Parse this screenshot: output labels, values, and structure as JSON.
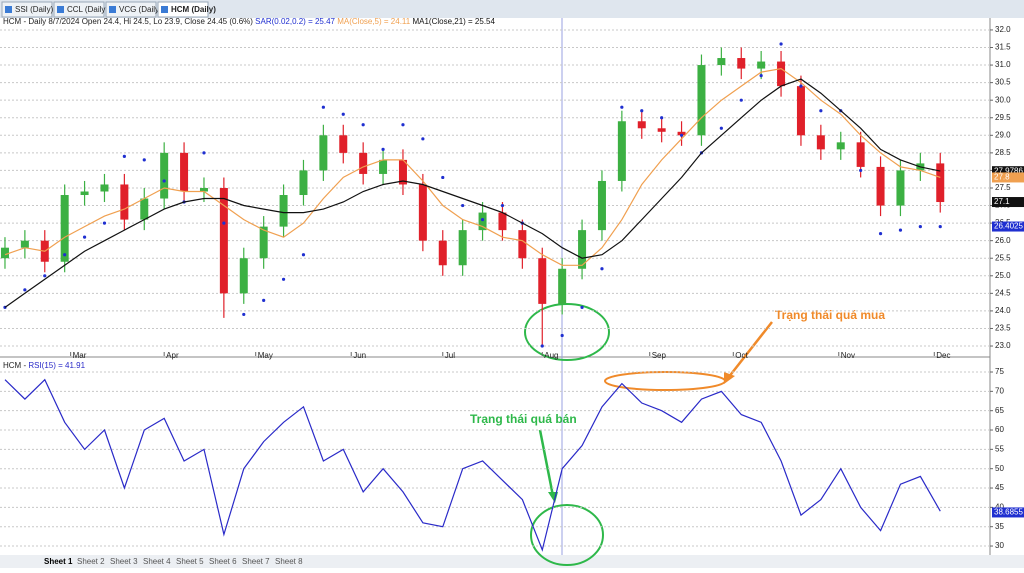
{
  "tabs": [
    "SSI (Daily)",
    "CCL (Daily)",
    "VCG (Daily)",
    "HCM (Daily)"
  ],
  "sheets": [
    "Sheet 1",
    "Sheet 2",
    "Sheet 3",
    "Sheet 4",
    "Sheet 5",
    "Sheet 6",
    "Sheet 7",
    "Sheet 8"
  ],
  "annotations": [
    "Trạng thái quá mua",
    "Trạng thái quá bán"
  ],
  "chart_data": [
    {
      "type": "candlestick",
      "title": "HCM - Daily 8/7/2024 Open 24.4, Hi 24.5, Lo 23.9, Close 24.45 (0.6%)",
      "xlim": [
        -0.25,
        49.5
      ],
      "xticks": [
        {
          "value": 3.3,
          "label": "Mar"
        },
        {
          "value": 8.0,
          "label": "Apr"
        },
        {
          "value": 12.6,
          "label": "May"
        },
        {
          "value": 17.4,
          "label": "Jun"
        },
        {
          "value": 22.0,
          "label": "Jul"
        },
        {
          "value": 27.0,
          "label": "Aug"
        },
        {
          "value": 32.4,
          "label": "Sep"
        },
        {
          "value": 36.6,
          "label": "Oct"
        },
        {
          "value": 41.9,
          "label": "Nov"
        },
        {
          "value": 46.7,
          "label": "Dec"
        }
      ],
      "ylim": [
        22.83,
        32.34
      ],
      "yticks": [
        {
          "value": 23,
          "label": "23.0"
        },
        {
          "value": 23.5,
          "label": "23.5"
        },
        {
          "value": 24,
          "label": "24.0"
        },
        {
          "value": 24.5,
          "label": "24.5"
        },
        {
          "value": 25,
          "label": "25.0"
        },
        {
          "value": 25.5,
          "label": "25.5"
        },
        {
          "value": 26,
          "label": "26.0"
        },
        {
          "value": 26.5,
          "label": "26.5"
        },
        {
          "value": 27,
          "label": "27.0"
        },
        {
          "value": 27.5,
          "label": "27.5"
        },
        {
          "value": 28,
          "label": "28.0"
        },
        {
          "value": 28.5,
          "label": "28.5"
        },
        {
          "value": 29,
          "label": "29.0"
        },
        {
          "value": 29.5,
          "label": "29.5"
        },
        {
          "value": 30,
          "label": "30.0"
        },
        {
          "value": 30.5,
          "label": "30.5"
        },
        {
          "value": 31,
          "label": "31.0"
        },
        {
          "value": 31.5,
          "label": "31.5"
        },
        {
          "value": 32,
          "label": "32.0"
        }
      ],
      "grid": true,
      "up_color": "#3cb043",
      "down_color": "#e0202a",
      "open": [
        25.5,
        25.8,
        26.0,
        25.4,
        27.3,
        27.4,
        27.6,
        26.6,
        27.2,
        28.5,
        27.4,
        27.5,
        24.5,
        25.5,
        26.4,
        27.3,
        28.0,
        29.0,
        28.5,
        27.9,
        28.3,
        27.6,
        26.0,
        25.3,
        26.3,
        26.8,
        26.3,
        25.5,
        24.2,
        25.2,
        26.3,
        27.7,
        29.4,
        29.2,
        29.1,
        29.0,
        31.0,
        31.2,
        30.9,
        31.1,
        30.4,
        29.0,
        28.6,
        28.8,
        28.1,
        27.0,
        28.0,
        28.2
      ],
      "high": [
        26.1,
        26.3,
        26.3,
        27.6,
        27.7,
        27.9,
        27.9,
        27.5,
        28.8,
        28.8,
        27.8,
        27.8,
        25.8,
        26.7,
        27.6,
        28.3,
        29.3,
        29.3,
        28.8,
        28.6,
        28.6,
        27.9,
        26.3,
        26.6,
        27.1,
        27.1,
        26.6,
        25.8,
        25.5,
        26.6,
        28.0,
        29.7,
        29.7,
        29.5,
        29.4,
        31.3,
        31.5,
        31.5,
        31.4,
        31.4,
        30.7,
        29.3,
        29.1,
        29.1,
        28.4,
        28.3,
        28.5,
        28.5
      ],
      "low": [
        25.2,
        25.5,
        25.1,
        25.1,
        27.0,
        27.1,
        26.3,
        26.3,
        26.9,
        27.1,
        27.1,
        23.8,
        24.2,
        25.2,
        26.1,
        27.0,
        27.7,
        28.2,
        27.6,
        27.6,
        27.3,
        25.7,
        25.0,
        25.0,
        26.0,
        26.0,
        25.2,
        23.0,
        23.9,
        24.9,
        26.0,
        27.4,
        28.9,
        28.8,
        28.7,
        28.7,
        30.7,
        30.6,
        30.6,
        30.1,
        28.7,
        28.3,
        28.3,
        27.8,
        26.7,
        26.7,
        27.7,
        26.8
      ],
      "close": [
        25.8,
        26.0,
        25.4,
        27.3,
        27.4,
        27.6,
        26.6,
        27.2,
        28.5,
        27.4,
        27.5,
        24.5,
        25.5,
        26.4,
        27.3,
        28.0,
        29.0,
        28.5,
        27.9,
        28.3,
        27.6,
        26.0,
        25.3,
        26.3,
        26.8,
        26.3,
        25.5,
        24.2,
        25.2,
        26.3,
        27.7,
        29.4,
        29.2,
        29.1,
        29.0,
        31.0,
        31.2,
        30.9,
        31.1,
        30.4,
        29.0,
        28.6,
        28.8,
        28.1,
        27.0,
        28.0,
        28.2,
        27.1
      ],
      "series": [
        {
          "name": "SAR(0.02,0.2) = 25.47",
          "color": "#1f2fd0",
          "style": "dots",
          "values": [
            24.1,
            24.6,
            25.0,
            25.6,
            26.1,
            26.5,
            28.4,
            28.3,
            27.7,
            27.1,
            28.5,
            26.5,
            23.9,
            24.3,
            24.9,
            25.6,
            29.8,
            29.6,
            29.3,
            28.6,
            29.3,
            28.9,
            27.8,
            27.0,
            26.6,
            27.0,
            26.5,
            23.0,
            23.3,
            24.1,
            25.2,
            29.8,
            29.7,
            29.5,
            29.0,
            28.5,
            29.2,
            30.0,
            30.7,
            31.6,
            30.4,
            29.7,
            29.7,
            28.0,
            26.2,
            26.3,
            26.4,
            26.4
          ]
        },
        {
          "name": "MA(Close,5) = 24.11",
          "color": "#f0a050",
          "style": "line",
          "values": [
            25.6,
            25.8,
            25.7,
            26.1,
            26.4,
            26.7,
            26.9,
            27.2,
            27.5,
            27.4,
            27.4,
            27.0,
            26.6,
            26.3,
            26.1,
            26.5,
            27.2,
            27.8,
            28.1,
            28.3,
            28.3,
            27.7,
            27.0,
            26.6,
            26.4,
            26.1,
            26.0,
            25.6,
            25.3,
            25.3,
            25.8,
            26.6,
            27.6,
            28.3,
            28.9,
            29.5,
            30.0,
            30.4,
            30.8,
            30.9,
            30.5,
            30.0,
            29.6,
            29.0,
            28.5,
            28.1,
            28.0,
            27.8
          ]
        },
        {
          "name": "MA1(Close,21) = 25.54",
          "color": "#111111",
          "style": "line",
          "values": [
            24.1,
            24.5,
            24.9,
            25.3,
            25.7,
            26.0,
            26.3,
            26.6,
            26.9,
            27.1,
            27.2,
            27.2,
            27.0,
            26.9,
            26.8,
            26.8,
            26.9,
            27.1,
            27.4,
            27.6,
            27.7,
            27.6,
            27.4,
            27.2,
            27.0,
            26.8,
            26.5,
            26.2,
            25.8,
            25.5,
            25.6,
            26.0,
            26.6,
            27.2,
            27.8,
            28.5,
            29.0,
            29.5,
            30.0,
            30.4,
            30.6,
            30.2,
            29.7,
            29.2,
            28.6,
            28.3,
            28.1,
            27.98
          ]
        }
      ],
      "price_tags": [
        {
          "value": 27.9786,
          "color": "#111111"
        },
        {
          "value": 27.8,
          "color": "#f0a050"
        },
        {
          "value": 27.1,
          "color": "#111111"
        },
        {
          "value": 26.4025,
          "color": "#1f2fd0"
        }
      ]
    },
    {
      "type": "line",
      "title": "HCM -",
      "xlim": [
        -0.25,
        49.5
      ],
      "ylim": [
        27.68,
        77.59
      ],
      "yticks": [
        30,
        35,
        40,
        45,
        50,
        55,
        60,
        65,
        70,
        75
      ],
      "grid": true,
      "series": [
        {
          "name": "RSI(15) = 41.91",
          "color": "#2a2ac8",
          "values": [
            73,
            68,
            73,
            62,
            55,
            60,
            45,
            60,
            63,
            52,
            55,
            33,
            50,
            57,
            62,
            66,
            52,
            55,
            44,
            50,
            44,
            36,
            35,
            50,
            52,
            47,
            42,
            29,
            50,
            56,
            66,
            72,
            67,
            65,
            62,
            68,
            70,
            64,
            62,
            52,
            38,
            42,
            50,
            40,
            34,
            46,
            48,
            39
          ]
        }
      ],
      "price_tags": [
        {
          "value": 38.6855,
          "color": "#1f2fd0"
        }
      ]
    }
  ]
}
